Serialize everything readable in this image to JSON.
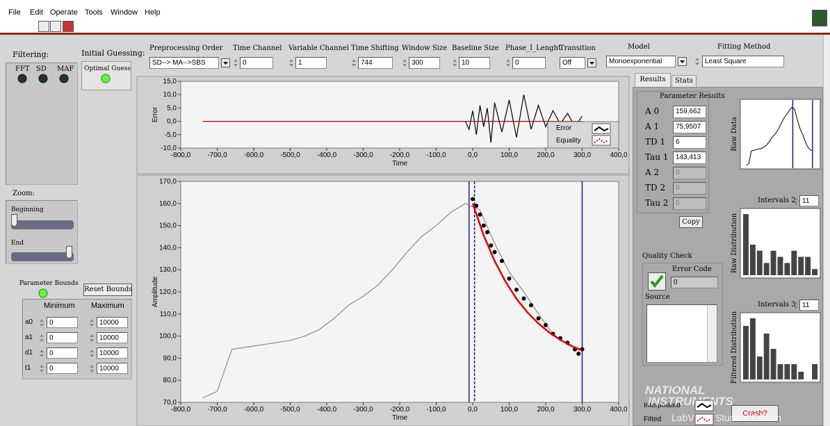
{
  "menu": [
    "File",
    "Edit",
    "Operate",
    "Tools",
    "Window",
    "Help"
  ],
  "filtering": {
    "label": "Filtering:",
    "leds": [
      "FFT",
      "SD",
      "MAF"
    ]
  },
  "initial_guessing": {
    "label": "Initial Guessing:",
    "option": "Optimal Guess"
  },
  "controls": [
    {
      "label": "Preprocessing Order",
      "value": "SD--> MA-->SBS"
    },
    {
      "label": "Time Channel",
      "value": 0
    },
    {
      "label": "Variable Channel",
      "value": 1
    },
    {
      "label": "Time Shifting",
      "value": 744
    },
    {
      "label": "Window Size",
      "value": 300
    },
    {
      "label": "Baseline Size",
      "value": 10
    },
    {
      "label": "Phase_I_Lenght",
      "value": 0
    },
    {
      "label": "Transition",
      "value": "Off"
    }
  ],
  "model": {
    "label": "Model",
    "value": "Monoexponential"
  },
  "fitting_method": {
    "label": "Fitting Method",
    "value": "Least Square"
  },
  "zoom": {
    "label": "Zoom:",
    "beginning": "Beginning",
    "end": "End"
  },
  "parameter_bounds": {
    "label": "Parameter Bounds",
    "reset": "Reset Bounds",
    "headers": [
      "Minimum",
      "Maximum"
    ],
    "rows": [
      [
        "a0",
        0,
        10000
      ],
      [
        "a1",
        0,
        10000
      ],
      [
        "d1",
        0,
        10000
      ],
      [
        "t1",
        0,
        10000
      ]
    ]
  },
  "error_graph": {
    "x_label": "Time",
    "y_label": "Error",
    "xlim": [
      -800,
      400
    ],
    "xticks": [
      {
        "value": -800,
        "label": "-800,0"
      },
      {
        "value": -700,
        "label": "-700,0"
      },
      {
        "value": -600,
        "label": "-600,0"
      },
      {
        "value": -500,
        "label": "-500,0"
      },
      {
        "value": -400,
        "label": "-400,0"
      },
      {
        "value": -300,
        "label": "-300,0"
      },
      {
        "value": -200,
        "label": "-200,0"
      },
      {
        "value": -100,
        "label": "-100,0"
      },
      {
        "value": 0,
        "label": "0,0"
      },
      {
        "value": 100,
        "label": "100,0"
      },
      {
        "value": 200,
        "label": "200,0"
      },
      {
        "value": 300,
        "label": "300,0"
      },
      {
        "value": 400,
        "label": "400,0"
      }
    ],
    "ylim": [
      -10,
      15
    ],
    "yticks": [
      {
        "value": -10,
        "label": "-10,0"
      },
      {
        "value": -5,
        "label": "-5,0"
      },
      {
        "value": 0,
        "label": "0,0"
      },
      {
        "value": 5,
        "label": "5,0"
      },
      {
        "value": 10,
        "label": "10,0"
      },
      {
        "value": 15,
        "label": "15,0"
      }
    ],
    "series": [
      {
        "name": "Error",
        "color": "#000000",
        "mode": "line",
        "x": [
          -20,
          -10,
          0,
          10,
          20,
          30,
          40,
          50,
          60,
          80,
          100,
          120,
          140,
          160,
          180,
          200,
          220,
          240,
          260,
          280,
          300
        ],
        "values": [
          0,
          -3,
          4,
          -5,
          6,
          -2,
          5,
          -8,
          7,
          -4,
          8,
          -6,
          10,
          -3,
          6,
          -2,
          4,
          -1,
          3,
          -2,
          2
        ]
      },
      {
        "name": "Equality",
        "color": "#c00000",
        "mode": "line",
        "x": [
          -740,
          300
        ],
        "values": [
          0,
          0
        ]
      }
    ]
  },
  "amplitude_graph": {
    "x_label": "Time",
    "y_label": "Amplitude",
    "xlim": [
      -800,
      400
    ],
    "xticks": [
      {
        "value": -800,
        "label": "-800,0"
      },
      {
        "value": -700,
        "label": "-700,0"
      },
      {
        "value": -600,
        "label": "-600,0"
      },
      {
        "value": -500,
        "label": "-500,0"
      },
      {
        "value": -400,
        "label": "-400,0"
      },
      {
        "value": -300,
        "label": "-300,0"
      },
      {
        "value": -200,
        "label": "-200,0"
      },
      {
        "value": -100,
        "label": "-100,0"
      },
      {
        "value": 0,
        "label": "0,0"
      },
      {
        "value": 100,
        "label": "100,0"
      },
      {
        "value": 200,
        "label": "200,0"
      },
      {
        "value": 300,
        "label": "300,0"
      },
      {
        "value": 400,
        "label": "400,0"
      }
    ],
    "ylim": [
      70,
      170
    ],
    "yticks": [
      {
        "value": 70,
        "label": "70,0"
      },
      {
        "value": 80,
        "label": "80,0"
      },
      {
        "value": 90,
        "label": "90,0"
      },
      {
        "value": 100,
        "label": "100,0"
      },
      {
        "value": 110,
        "label": "110,0"
      },
      {
        "value": 120,
        "label": "120,0"
      },
      {
        "value": 130,
        "label": "130,0"
      },
      {
        "value": 140,
        "label": "140,0"
      },
      {
        "value": 150,
        "label": "150,0"
      },
      {
        "value": 160,
        "label": "160,0"
      },
      {
        "value": 170,
        "label": "170,0"
      }
    ],
    "series": [
      {
        "color": "#8a8a8a",
        "mode": "line",
        "x": [
          -740,
          -700,
          -660,
          -620,
          -580,
          -540,
          -500,
          -460,
          -420,
          -380,
          -340,
          -300,
          -260,
          -220,
          -180,
          -140,
          -100,
          -60,
          -20,
          20,
          60,
          100,
          140,
          180,
          220,
          260,
          300
        ],
        "values": [
          72,
          75,
          94,
          95,
          96,
          97,
          98,
          100,
          103,
          108,
          114,
          118,
          123,
          130,
          138,
          145,
          150,
          156,
          160,
          157,
          142,
          129,
          120,
          110,
          101,
          96,
          94
        ]
      },
      {
        "name": "Interpolated",
        "color": "#000000",
        "mode": "markers",
        "x": [
          0,
          10,
          20,
          30,
          40,
          50,
          60,
          80,
          100,
          120,
          140,
          160,
          180,
          200,
          220,
          240,
          260,
          280,
          290,
          300
        ],
        "values": [
          162,
          159,
          155,
          150,
          147,
          141,
          138,
          134,
          126,
          121,
          117,
          114,
          108,
          105,
          101,
          99,
          97,
          94,
          92,
          94
        ]
      },
      {
        "name": "Fitted",
        "color": "#e00000",
        "mode": "line",
        "x": [
          0,
          30,
          60,
          90,
          120,
          150,
          180,
          210,
          240,
          270,
          300
        ],
        "values": [
          160,
          145.6,
          134,
          124.6,
          116.9,
          110.7,
          105.7,
          101.6,
          98.3,
          95.6,
          93.4
        ]
      }
    ],
    "cursors": [
      -10,
      5,
      300
    ]
  },
  "tabs": [
    "Results",
    "Stats"
  ],
  "results": {
    "title": "Parameter Results",
    "rows": [
      [
        "A 0",
        "159,662"
      ],
      [
        "A 1",
        "75,9507"
      ],
      [
        "TD 1",
        "6"
      ],
      [
        "Tau 1",
        "143,413"
      ],
      [
        "A 2",
        "0"
      ],
      [
        "TD 2",
        "0"
      ],
      [
        "Tau 2",
        "0"
      ]
    ],
    "copy": "Copy"
  },
  "raw_data": {
    "label": "Raw Data"
  },
  "raw_distribution": {
    "label": "Raw Distribution",
    "intervals_label": "Intervals 2",
    "intervals": 11,
    "counts": [
      10,
      5,
      4,
      2,
      4,
      3,
      2,
      4,
      3,
      3,
      1
    ]
  },
  "filtered_distribution": {
    "label": "Filtered Distribution",
    "intervals_label": "Intervals 3",
    "intervals": 11,
    "counts": [
      7,
      8,
      3,
      6,
      4,
      2,
      2,
      2,
      1,
      0,
      2
    ]
  },
  "quality_check": {
    "label": "Quality Check",
    "error_code_label": "Error Code",
    "error_code": 0,
    "source_label": "Source"
  },
  "crash": "Crash?",
  "watermark": [
    "NATIONAL",
    "INSTRUMENTS",
    "LabVIEW Student Edition"
  ]
}
